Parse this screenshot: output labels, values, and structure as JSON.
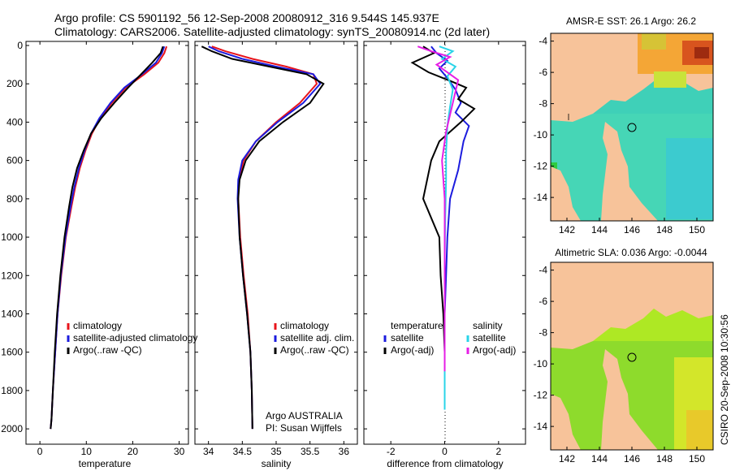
{
  "titles": {
    "line1": "Argo profile: CS 5901192_56 12-Sep-2008 20080912_316 9.544S 145.937E",
    "line2": "Climatology: CARS2006. Satellite-adjusted climatology: synTS_20080914.nc (2d later)"
  },
  "colors": {
    "climatology": "#e8141b",
    "satellite": "#1c1cde",
    "argo": "#000000",
    "sat_sal": "#2ad4e8",
    "argo_sal": "#e61ee6",
    "land": "#f7c39a"
  },
  "credit": "CSIRO 20-Sep-2008 10:30:56",
  "chart_data": [
    {
      "type": "line",
      "name": "temperature-profile",
      "xlabel": "temperature",
      "ylabel": "",
      "xlim": [
        -3,
        32
      ],
      "ylim": [
        2080,
        0
      ],
      "xticks": [
        0,
        10,
        20,
        30
      ],
      "yticks": [
        0,
        200,
        400,
        600,
        800,
        1000,
        1200,
        1400,
        1600,
        1800,
        2000
      ],
      "legend": [
        "climatology",
        "satellite-adjusted climatology",
        "Argo(..raw -QC)"
      ],
      "series": [
        {
          "name": "climatology",
          "color_key": "climatology",
          "x": [
            27.3,
            26.8,
            25.5,
            22.5,
            18.5,
            15.5,
            13.0,
            11.2,
            9.8,
            8.6,
            7.6,
            6.8,
            5.6,
            4.6,
            3.8,
            3.3,
            2.8,
            2.5,
            2.3
          ],
          "y": [
            5,
            40,
            90,
            150,
            220,
            300,
            380,
            460,
            550,
            640,
            740,
            840,
            1000,
            1200,
            1400,
            1600,
            1800,
            1950,
            2000
          ]
        },
        {
          "name": "satellite-adjusted climatology",
          "color_key": "satellite",
          "x": [
            26.8,
            26.3,
            25.0,
            22.0,
            18.2,
            15.2,
            12.8,
            11.0,
            9.6,
            8.4,
            7.4,
            6.6,
            5.5,
            4.5,
            3.8,
            3.3,
            2.8,
            2.5,
            2.3
          ],
          "y": [
            5,
            40,
            90,
            150,
            220,
            300,
            380,
            460,
            550,
            640,
            740,
            840,
            1000,
            1200,
            1400,
            1600,
            1800,
            1950,
            2000
          ]
        },
        {
          "name": "Argo(..raw -QC)",
          "color_key": "argo",
          "x": [
            26.5,
            26.0,
            24.2,
            21.8,
            19.0,
            16.0,
            13.2,
            11.0,
            9.4,
            8.0,
            7.0,
            6.3,
            5.3,
            4.4,
            3.7,
            3.2,
            2.8,
            2.5,
            2.3
          ],
          "y": [
            5,
            40,
            90,
            150,
            220,
            300,
            380,
            460,
            550,
            640,
            740,
            840,
            1000,
            1200,
            1400,
            1600,
            1800,
            1950,
            2000
          ]
        }
      ]
    },
    {
      "type": "line",
      "name": "salinity-profile",
      "xlabel": "salinity",
      "ylabel": "",
      "xlim": [
        33.8,
        36.2
      ],
      "ylim": [
        2080,
        0
      ],
      "xticks": [
        34,
        34.5,
        35,
        35.5,
        36
      ],
      "yticks": [
        0,
        200,
        400,
        600,
        800,
        1000,
        1200,
        1400,
        1600,
        1800,
        2000
      ],
      "legend": [
        "climatology",
        "satellite adj. clim.",
        "Argo(..raw -QC)"
      ],
      "annotation_lines": [
        "Argo AUSTRALIA",
        "PI: Susan Wijffels"
      ],
      "series": [
        {
          "name": "climatology",
          "color_key": "climatology",
          "x": [
            34.05,
            34.25,
            34.65,
            35.15,
            35.55,
            35.6,
            35.35,
            35.0,
            34.7,
            34.52,
            34.45,
            34.44,
            34.47,
            34.52,
            34.58,
            34.62,
            34.64,
            34.65
          ],
          "y": [
            5,
            30,
            70,
            110,
            150,
            200,
            300,
            400,
            500,
            600,
            700,
            800,
            1000,
            1200,
            1400,
            1600,
            1800,
            2000
          ]
        },
        {
          "name": "satellite adj. clim.",
          "color_key": "satellite",
          "x": [
            34.0,
            34.15,
            34.5,
            35.0,
            35.55,
            35.65,
            35.4,
            35.02,
            34.7,
            34.5,
            34.44,
            34.43,
            34.46,
            34.51,
            34.57,
            34.62,
            34.64,
            34.65
          ],
          "y": [
            5,
            30,
            70,
            110,
            150,
            200,
            300,
            400,
            500,
            600,
            700,
            800,
            1000,
            1200,
            1400,
            1600,
            1800,
            2000
          ]
        },
        {
          "name": "Argo(..raw -QC)",
          "color_key": "argo",
          "x": [
            33.9,
            34.05,
            34.35,
            34.9,
            35.45,
            35.7,
            35.5,
            35.1,
            34.75,
            34.55,
            34.46,
            34.44,
            34.46,
            34.51,
            34.57,
            34.62,
            34.64,
            34.65
          ],
          "y": [
            5,
            30,
            70,
            110,
            150,
            200,
            300,
            400,
            500,
            600,
            700,
            800,
            1000,
            1200,
            1400,
            1600,
            1800,
            2000
          ]
        }
      ]
    },
    {
      "type": "line",
      "name": "difference-profile",
      "xlabel": "difference from climatology",
      "ylabel": "",
      "xlim": [
        -3,
        3
      ],
      "ylim": [
        2080,
        0
      ],
      "xticks": [
        -2,
        0,
        2
      ],
      "yticks": [
        0,
        200,
        400,
        600,
        800,
        1000,
        1200,
        1400,
        1600,
        1800,
        2000
      ],
      "legend_temperature": {
        "heading": "temperature",
        "items": [
          "satellite",
          "Argo(-adj)"
        ]
      },
      "legend_salinity": {
        "heading": "salinity",
        "items": [
          "satellite",
          "Argo(-adj)"
        ]
      },
      "series": [
        {
          "name": "temperature satellite",
          "color_key": "satellite",
          "x": [
            -0.5,
            -0.3,
            0.1,
            -0.2,
            0.1,
            0.4,
            0.6,
            0.4,
            0.9,
            0.7,
            0.5,
            0.2,
            0.1,
            0.05,
            0.0,
            0.0,
            0.0,
            0.0
          ],
          "y": [
            5,
            40,
            80,
            120,
            170,
            230,
            300,
            350,
            420,
            500,
            650,
            800,
            1000,
            1200,
            1400,
            1600,
            1800,
            1900
          ]
        },
        {
          "name": "temperature Argo(-adj)",
          "color_key": "argo",
          "x": [
            -0.8,
            -0.4,
            -1.2,
            -0.6,
            0.3,
            0.8,
            0.5,
            1.1,
            0.6,
            -0.2,
            -0.5,
            -0.8,
            -0.2,
            -0.15,
            -0.05,
            0.0,
            0.0,
            0.0
          ],
          "y": [
            5,
            40,
            90,
            140,
            190,
            220,
            280,
            330,
            400,
            500,
            600,
            800,
            1000,
            1200,
            1400,
            1600,
            1800,
            1900
          ]
        },
        {
          "name": "salinity satellite",
          "color_key": "sat_sal",
          "x": [
            -0.2,
            0.3,
            -0.1,
            0.4,
            0.1,
            0.3,
            0.2,
            0.1,
            0.05,
            0.05,
            0.02,
            0.0,
            0.0,
            0.0,
            0.0
          ],
          "y": [
            5,
            30,
            70,
            110,
            160,
            230,
            320,
            420,
            560,
            700,
            900,
            1100,
            1400,
            1700,
            1900
          ]
        },
        {
          "name": "salinity Argo(-adj)",
          "color_key": "argo_sal",
          "x": [
            -1.0,
            -0.5,
            0.2,
            -0.3,
            0.5,
            0.3,
            0.05,
            -0.1,
            0.0,
            0.0,
            0.0,
            0.0
          ],
          "y": [
            5,
            30,
            60,
            100,
            180,
            300,
            450,
            600,
            800,
            1100,
            1400,
            1700
          ]
        }
      ]
    },
    {
      "type": "heatmap",
      "name": "amsre-sst-map",
      "title": "AMSR-E SST: 26.1 Argo: 26.2",
      "xlim": [
        141,
        151
      ],
      "ylim": [
        -15.5,
        -3.5
      ],
      "xticks": [
        142,
        144,
        146,
        148,
        150
      ],
      "yticks": [
        -4,
        -6,
        -8,
        -10,
        -12,
        -14
      ],
      "marker": {
        "lon": 145.937,
        "lat": -9.544
      }
    },
    {
      "type": "heatmap",
      "name": "altimetric-sla-map",
      "title": "Altimetric SLA: 0.036 Argo: -0.0044",
      "xlim": [
        141,
        151
      ],
      "ylim": [
        -15.5,
        -3.5
      ],
      "xticks": [
        142,
        144,
        146,
        148,
        150
      ],
      "yticks": [
        -4,
        -6,
        -8,
        -10,
        -12,
        -14
      ],
      "marker": {
        "lon": 145.937,
        "lat": -9.544
      }
    }
  ]
}
